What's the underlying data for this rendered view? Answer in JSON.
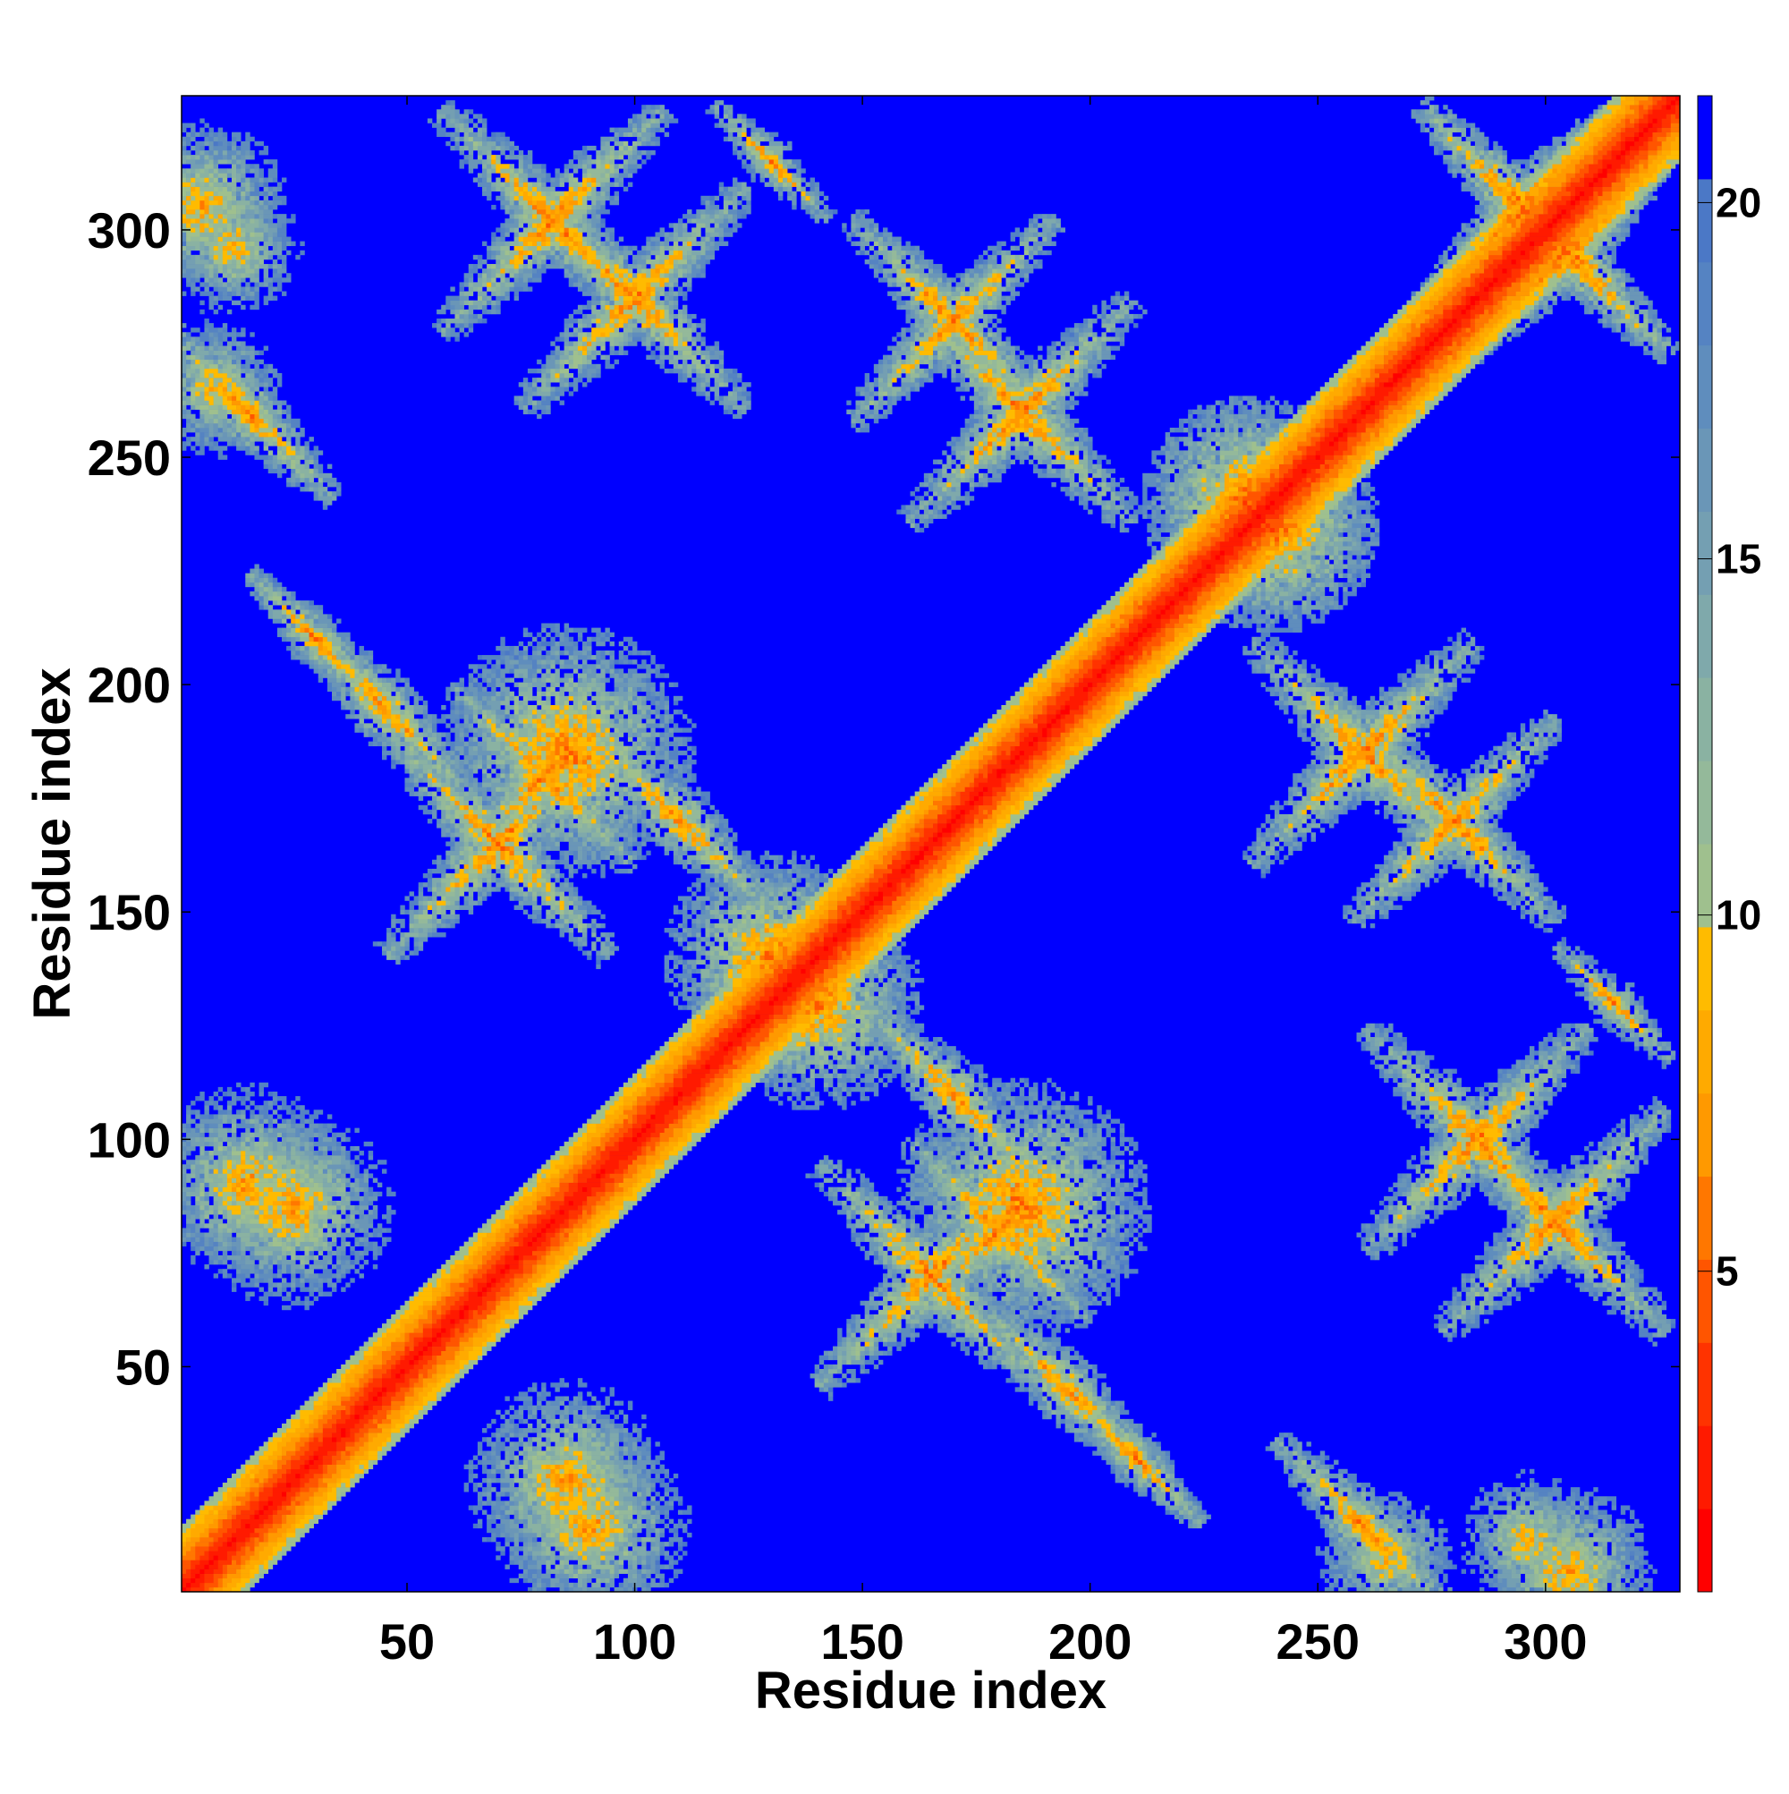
{
  "chart_data": {
    "type": "heatmap",
    "title": "",
    "xlabel": "Residue index",
    "ylabel": "Residue index",
    "xlim": [
      1,
      329
    ],
    "ylim": [
      1,
      329
    ],
    "x_ticks": [
      50,
      100,
      150,
      200,
      250,
      300
    ],
    "y_ticks": [
      50,
      100,
      150,
      200,
      250,
      300
    ],
    "colorbar": {
      "ticks": [
        5,
        10,
        15,
        20
      ],
      "range": [
        0.5,
        21.5
      ],
      "colors": [
        "#ff0000",
        "#ff1a00",
        "#ff3300",
        "#ff5500",
        "#ff7700",
        "#ff9900",
        "#ffaa00",
        "#ffbb00",
        "#9fc08e",
        "#94b99a",
        "#8ab2a2",
        "#7fa9ab",
        "#749fb2",
        "#6a96b7",
        "#5f8dbd",
        "#5583c2",
        "#4b78c6",
        "#0000ff"
      ],
      "saturated_color": "#0000ff"
    },
    "symmetric": true,
    "description_note": null,
    "contact_regions": [
      {
        "i": [
          1,
          329
        ],
        "j_offset": 0,
        "kind": "diagonal",
        "min_distance": 1
      },
      {
        "center": [
          82,
          302
        ],
        "spread": 22,
        "kind": "cross",
        "min_distance": 4
      },
      {
        "center": [
          8,
          265
        ],
        "spread": 10,
        "kind": "block",
        "min_distance": 6
      },
      {
        "center": [
          12,
          296
        ],
        "spread": 10,
        "kind": "block",
        "min_distance": 6
      },
      {
        "center": [
          30,
          210
        ],
        "spread": 14,
        "kind": "band",
        "min_distance": 4
      },
      {
        "center": [
          70,
          165
        ],
        "spread": 22,
        "kind": "cross",
        "min_distance": 4
      },
      {
        "center": [
          85,
          185
        ],
        "spread": 18,
        "kind": "block",
        "min_distance": 4
      },
      {
        "center": [
          110,
          170
        ],
        "spread": 18,
        "kind": "band",
        "min_distance": 4
      },
      {
        "center": [
          170,
          280
        ],
        "spread": 20,
        "kind": "cross",
        "min_distance": 4
      },
      {
        "center": [
          235,
          240
        ],
        "spread": 15,
        "kind": "block",
        "min_distance": 3
      },
      {
        "center": [
          260,
          185
        ],
        "spread": 22,
        "kind": "cross",
        "min_distance": 4
      },
      {
        "center": [
          285,
          100
        ],
        "spread": 22,
        "kind": "cross",
        "min_distance": 4
      },
      {
        "center": [
          15,
          90
        ],
        "spread": 14,
        "kind": "block",
        "min_distance": 5
      },
      {
        "center": [
          85,
          25
        ],
        "spread": 14,
        "kind": "block",
        "min_distance": 5
      },
      {
        "center": [
          260,
          15
        ],
        "spread": 18,
        "kind": "band",
        "min_distance": 4
      },
      {
        "center": [
          305,
          5
        ],
        "spread": 12,
        "kind": "block",
        "min_distance": 5
      },
      {
        "center": [
          315,
          130
        ],
        "spread": 12,
        "kind": "band",
        "min_distance": 4
      },
      {
        "center": [
          195,
          45
        ],
        "spread": 18,
        "kind": "band",
        "min_distance": 4
      },
      {
        "center": [
          180,
          80
        ],
        "spread": 18,
        "kind": "cross",
        "min_distance": 4
      },
      {
        "center": [
          140,
          130
        ],
        "spread": 15,
        "kind": "block",
        "min_distance": 4
      },
      {
        "center": [
          305,
          295
        ],
        "spread": 20,
        "kind": "cross",
        "min_distance": 3
      }
    ]
  }
}
